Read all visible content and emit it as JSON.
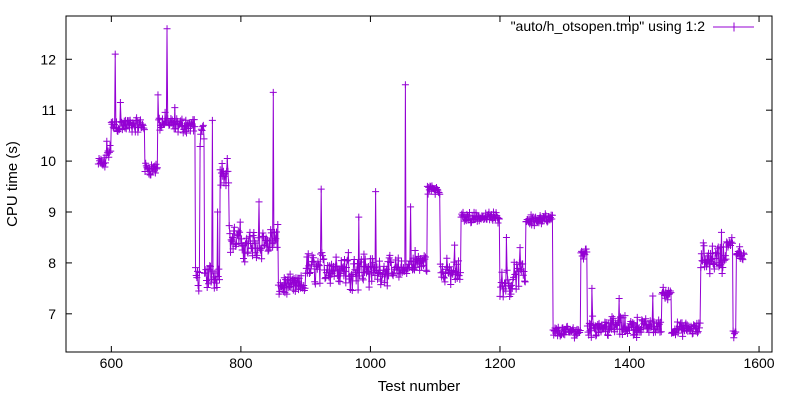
{
  "chart_data": {
    "type": "line",
    "marker": "plus",
    "xlabel": "Test number",
    "ylabel": "CPU time (s)",
    "xlim": [
      530,
      1620
    ],
    "ylim": [
      6.25,
      12.85
    ],
    "xticks": [
      600,
      800,
      1000,
      1200,
      1400,
      1600
    ],
    "yticks": [
      7,
      8,
      9,
      10,
      11,
      12
    ],
    "grid": false,
    "legend_position": "top-right",
    "series": [
      {
        "name": "\"auto/h_otsopen.tmp\" using 1:2",
        "color": "#9400d3",
        "segments": [
          {
            "x_start": 580,
            "x_end": 592,
            "level": 9.95,
            "noise": 0.1
          },
          {
            "x_start": 592,
            "x_end": 600,
            "level": 10.2,
            "noise": 0.15
          },
          {
            "x_start": 600,
            "x_end": 652,
            "level": 10.7,
            "noise": 0.12
          },
          {
            "x_start": 652,
            "x_end": 672,
            "level": 9.85,
            "noise": 0.1
          },
          {
            "x_start": 672,
            "x_end": 690,
            "level": 10.75,
            "noise": 0.15
          },
          {
            "x_start": 690,
            "x_end": 730,
            "level": 10.7,
            "noise": 0.12
          },
          {
            "x_start": 730,
            "x_end": 737,
            "level": 7.7,
            "noise": 0.2
          },
          {
            "x_start": 737,
            "x_end": 744,
            "level": 10.5,
            "noise": 0.2
          },
          {
            "x_start": 744,
            "x_end": 768,
            "level": 7.75,
            "noise": 0.2
          },
          {
            "x_start": 768,
            "x_end": 782,
            "level": 9.8,
            "noise": 0.2
          },
          {
            "x_start": 782,
            "x_end": 800,
            "level": 8.45,
            "noise": 0.25
          },
          {
            "x_start": 800,
            "x_end": 830,
            "level": 8.35,
            "noise": 0.25
          },
          {
            "x_start": 830,
            "x_end": 858,
            "level": 8.4,
            "noise": 0.25
          },
          {
            "x_start": 858,
            "x_end": 900,
            "level": 7.55,
            "noise": 0.15
          },
          {
            "x_start": 900,
            "x_end": 960,
            "level": 7.9,
            "noise": 0.25
          },
          {
            "x_start": 960,
            "x_end": 1000,
            "level": 7.9,
            "noise": 0.3
          },
          {
            "x_start": 1000,
            "x_end": 1060,
            "level": 7.85,
            "noise": 0.2
          },
          {
            "x_start": 1060,
            "x_end": 1088,
            "level": 8.0,
            "noise": 0.2
          },
          {
            "x_start": 1088,
            "x_end": 1108,
            "level": 9.45,
            "noise": 0.08
          },
          {
            "x_start": 1108,
            "x_end": 1140,
            "level": 7.8,
            "noise": 0.2
          },
          {
            "x_start": 1140,
            "x_end": 1200,
            "level": 8.9,
            "noise": 0.08
          },
          {
            "x_start": 1200,
            "x_end": 1220,
            "level": 7.6,
            "noise": 0.2
          },
          {
            "x_start": 1220,
            "x_end": 1240,
            "level": 7.75,
            "noise": 0.2
          },
          {
            "x_start": 1240,
            "x_end": 1282,
            "level": 8.85,
            "noise": 0.1
          },
          {
            "x_start": 1282,
            "x_end": 1325,
            "level": 6.65,
            "noise": 0.08
          },
          {
            "x_start": 1325,
            "x_end": 1335,
            "level": 8.2,
            "noise": 0.15
          },
          {
            "x_start": 1335,
            "x_end": 1420,
            "level": 6.75,
            "noise": 0.15
          },
          {
            "x_start": 1420,
            "x_end": 1450,
            "level": 6.75,
            "noise": 0.12
          },
          {
            "x_start": 1450,
            "x_end": 1465,
            "level": 7.4,
            "noise": 0.1
          },
          {
            "x_start": 1465,
            "x_end": 1510,
            "level": 6.7,
            "noise": 0.1
          },
          {
            "x_start": 1510,
            "x_end": 1550,
            "level": 8.1,
            "noise": 0.25
          },
          {
            "x_start": 1550,
            "x_end": 1560,
            "level": 8.4,
            "noise": 0.1
          },
          {
            "x_start": 1560,
            "x_end": 1565,
            "level": 6.6,
            "noise": 0.05
          },
          {
            "x_start": 1565,
            "x_end": 1578,
            "level": 8.15,
            "noise": 0.15
          }
        ],
        "spikes": [
          {
            "x": 606,
            "y": 12.1
          },
          {
            "x": 614,
            "y": 11.15
          },
          {
            "x": 672,
            "y": 11.3
          },
          {
            "x": 686,
            "y": 12.6
          },
          {
            "x": 698,
            "y": 11.05
          },
          {
            "x": 740,
            "y": 10.6
          },
          {
            "x": 756,
            "y": 10.8
          },
          {
            "x": 764,
            "y": 9.0
          },
          {
            "x": 779,
            "y": 10.05
          },
          {
            "x": 828,
            "y": 9.2
          },
          {
            "x": 850,
            "y": 11.35
          },
          {
            "x": 924,
            "y": 9.45
          },
          {
            "x": 982,
            "y": 8.9
          },
          {
            "x": 1008,
            "y": 9.4
          },
          {
            "x": 1054,
            "y": 11.5
          },
          {
            "x": 1062,
            "y": 9.1
          },
          {
            "x": 1130,
            "y": 8.35
          },
          {
            "x": 1210,
            "y": 8.5
          },
          {
            "x": 1231,
            "y": 8.3
          },
          {
            "x": 1342,
            "y": 7.5
          },
          {
            "x": 1384,
            "y": 7.3
          },
          {
            "x": 1436,
            "y": 7.35
          },
          {
            "x": 1542,
            "y": 8.6
          }
        ]
      }
    ]
  }
}
